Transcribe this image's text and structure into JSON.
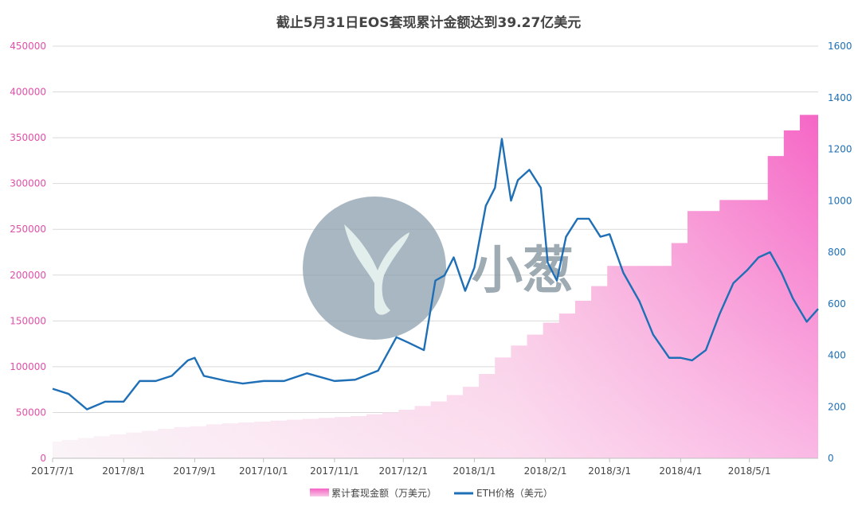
{
  "chart_data": {
    "type": "area+line",
    "title": "截止5月31日EOS套现累计金额达到39.27亿美元",
    "xlabel": "",
    "ylabel_left": "",
    "ylabel_right": "",
    "x_ticks": [
      "2017/7/1",
      "2017/8/1",
      "2017/9/1",
      "2017/10/1",
      "2017/11/1",
      "2017/12/1",
      "2018/1/1",
      "2018/2/1",
      "2018/3/1",
      "2018/4/1",
      "2018/5/1"
    ],
    "left_axis": {
      "ylim": [
        0,
        450000
      ],
      "ticks": [
        0,
        50000,
        100000,
        150000,
        200000,
        250000,
        300000,
        350000,
        400000,
        450000
      ],
      "color": "#e14fa8"
    },
    "right_axis": {
      "ylim": [
        0,
        1600
      ],
      "ticks": [
        0,
        200,
        400,
        600,
        800,
        1000,
        1200,
        1400,
        1600
      ],
      "color": "#1e6fb6"
    },
    "grid": true,
    "legend_position": "bottom",
    "watermark_text": "小葱",
    "series": [
      {
        "name": "累计套现金额（万美元）",
        "axis": "left",
        "kind": "area",
        "color": "#f26fc8",
        "x": [
          "2017/7/1",
          "2017/7/5",
          "2017/7/12",
          "2017/7/19",
          "2017/7/26",
          "2017/8/2",
          "2017/8/9",
          "2017/8/16",
          "2017/8/23",
          "2017/8/30",
          "2017/9/6",
          "2017/9/13",
          "2017/9/20",
          "2017/9/27",
          "2017/10/4",
          "2017/10/11",
          "2017/10/18",
          "2017/10/25",
          "2017/11/1",
          "2017/11/8",
          "2017/11/15",
          "2017/11/22",
          "2017/11/29",
          "2017/12/6",
          "2017/12/13",
          "2017/12/20",
          "2017/12/27",
          "2018/1/3",
          "2018/1/10",
          "2018/1/17",
          "2018/1/24",
          "2018/1/31",
          "2018/2/7",
          "2018/2/14",
          "2018/2/21",
          "2018/2/28",
          "2018/3/7",
          "2018/3/14",
          "2018/3/21",
          "2018/3/28",
          "2018/4/4",
          "2018/4/11",
          "2018/4/18",
          "2018/4/25",
          "2018/5/2",
          "2018/5/9",
          "2018/5/16",
          "2018/5/23",
          "2018/5/31"
        ],
        "values": [
          18000,
          20000,
          22000,
          24000,
          26000,
          28000,
          30000,
          32000,
          34000,
          35000,
          37000,
          38000,
          39000,
          40000,
          41000,
          42000,
          43000,
          44000,
          45000,
          46000,
          48000,
          50000,
          53000,
          57000,
          62000,
          69000,
          78000,
          92000,
          110000,
          123000,
          135000,
          148000,
          158000,
          172000,
          188000,
          210000,
          210000,
          210000,
          210000,
          235000,
          270000,
          270000,
          282000,
          282000,
          282000,
          330000,
          358000,
          375000,
          393000
        ]
      },
      {
        "name": "ETH价格（美元）",
        "axis": "right",
        "kind": "line",
        "color": "#1e6fb6",
        "x": [
          "2017/7/1",
          "2017/7/8",
          "2017/7/16",
          "2017/7/24",
          "2017/8/1",
          "2017/8/8",
          "2017/8/15",
          "2017/8/22",
          "2017/8/29",
          "2017/9/1",
          "2017/9/5",
          "2017/9/15",
          "2017/9/22",
          "2017/10/1",
          "2017/10/10",
          "2017/10/20",
          "2017/11/1",
          "2017/11/10",
          "2017/11/20",
          "2017/11/28",
          "2017/12/3",
          "2017/12/10",
          "2017/12/15",
          "2017/12/19",
          "2017/12/23",
          "2017/12/28",
          "2018/1/1",
          "2018/1/6",
          "2018/1/10",
          "2018/1/13",
          "2018/1/17",
          "2018/1/20",
          "2018/1/25",
          "2018/1/30",
          "2018/2/2",
          "2018/2/6",
          "2018/2/10",
          "2018/2/15",
          "2018/2/20",
          "2018/2/25",
          "2018/3/1",
          "2018/3/7",
          "2018/3/14",
          "2018/3/20",
          "2018/3/27",
          "2018/4/1",
          "2018/4/6",
          "2018/4/12",
          "2018/4/18",
          "2018/4/24",
          "2018/4/30",
          "2018/5/5",
          "2018/5/10",
          "2018/5/15",
          "2018/5/20",
          "2018/5/26",
          "2018/5/31"
        ],
        "values": [
          270,
          250,
          190,
          220,
          220,
          300,
          300,
          320,
          380,
          390,
          320,
          300,
          290,
          300,
          300,
          330,
          300,
          305,
          340,
          470,
          450,
          420,
          690,
          710,
          780,
          650,
          740,
          980,
          1050,
          1240,
          1000,
          1080,
          1120,
          1050,
          760,
          690,
          860,
          930,
          930,
          860,
          870,
          720,
          610,
          480,
          390,
          390,
          380,
          420,
          560,
          680,
          730,
          780,
          800,
          720,
          620,
          530,
          580
        ]
      }
    ]
  }
}
